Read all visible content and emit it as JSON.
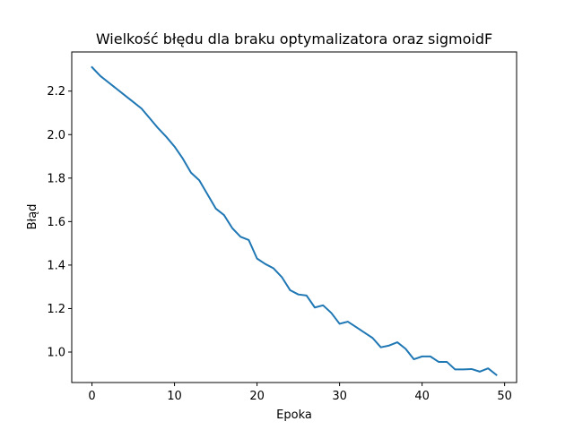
{
  "chart_data": {
    "type": "line",
    "title": "Wielkość błędu dla braku optymalizatora oraz sigmoidF",
    "xlabel": "Epoka",
    "ylabel": "Błąd",
    "xlim": [
      -2.45,
      51.45
    ],
    "ylim": [
      0.86,
      2.38
    ],
    "xticks": [
      0,
      10,
      20,
      30,
      40,
      50
    ],
    "yticks": [
      1.0,
      1.2,
      1.4,
      1.6,
      1.8,
      2.0,
      2.2
    ],
    "ytick_labels": [
      "1.0",
      "1.2",
      "1.4",
      "1.6",
      "1.8",
      "2.0",
      "2.2"
    ],
    "grid": false,
    "series": [
      {
        "color": "#1f77b4",
        "x": [
          0,
          1,
          2,
          3,
          4,
          5,
          6,
          7,
          8,
          9,
          10,
          11,
          12,
          13,
          14,
          15,
          16,
          17,
          18,
          19,
          20,
          21,
          22,
          23,
          24,
          25,
          26,
          27,
          28,
          29,
          30,
          31,
          32,
          33,
          34,
          35,
          36,
          37,
          38,
          39,
          40,
          41,
          42,
          43,
          44,
          45,
          46,
          47,
          48,
          49
        ],
        "y": [
          2.31,
          2.27,
          2.24,
          2.21,
          2.18,
          2.15,
          2.12,
          2.075,
          2.03,
          1.99,
          1.945,
          1.89,
          1.825,
          1.79,
          1.725,
          1.66,
          1.63,
          1.57,
          1.53,
          1.515,
          1.43,
          1.405,
          1.385,
          1.345,
          1.285,
          1.265,
          1.26,
          1.205,
          1.215,
          1.18,
          1.13,
          1.14,
          1.115,
          1.09,
          1.065,
          1.022,
          1.03,
          1.045,
          1.015,
          0.967,
          0.98,
          0.98,
          0.955,
          0.955,
          0.92,
          0.92,
          0.922,
          0.91,
          0.925,
          0.895
        ]
      }
    ]
  }
}
